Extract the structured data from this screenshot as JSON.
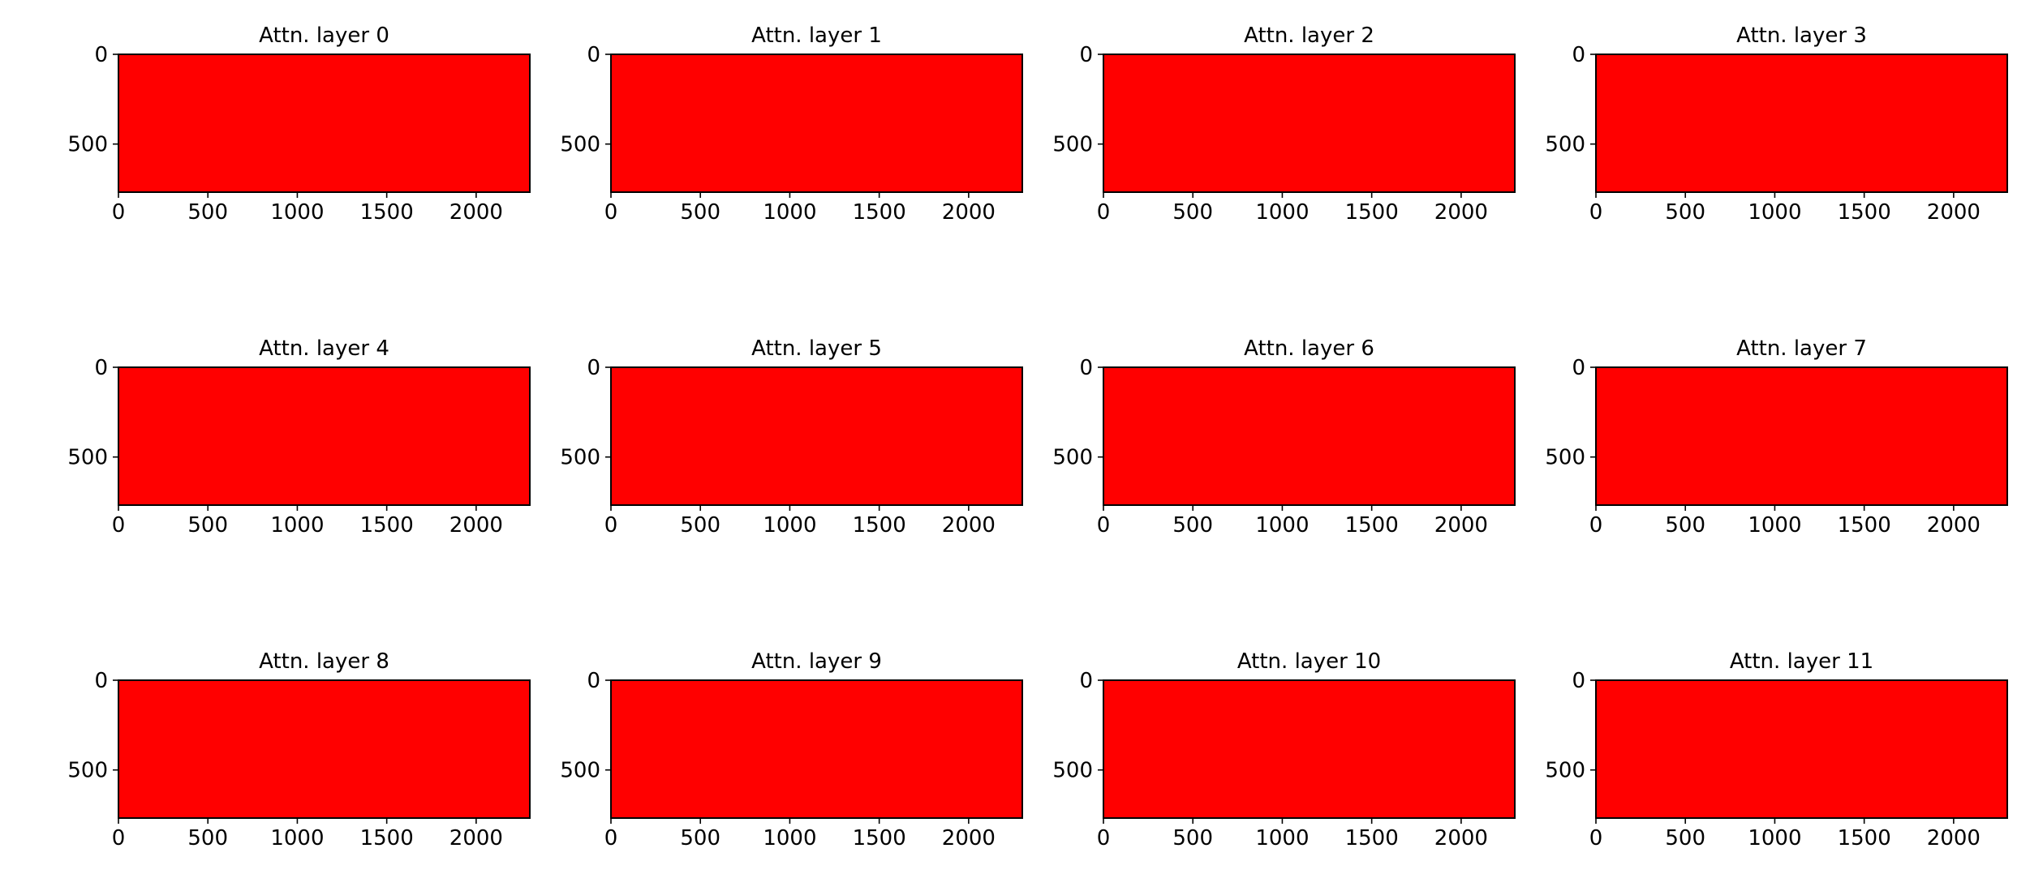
{
  "figure": {
    "background": "#ffffff",
    "fill_color": "#ff0000",
    "frame_color": "#000000",
    "rows": 3,
    "cols": 4
  },
  "chart_data": [
    {
      "type": "heatmap",
      "title": "Attn. layer 0",
      "xlim": [
        0,
        2300
      ],
      "ylim": [
        768,
        0
      ],
      "x_ticks": [
        "0",
        "500",
        "1000",
        "1500",
        "2000"
      ],
      "y_ticks": [
        "0",
        "500"
      ],
      "x_tick_values": [
        0,
        500,
        1000,
        1500,
        2000
      ],
      "y_tick_values": [
        0,
        500
      ],
      "uniform_value": "saturated red across entire map",
      "grid": false,
      "legend": "none"
    },
    {
      "type": "heatmap",
      "title": "Attn. layer 1",
      "xlim": [
        0,
        2300
      ],
      "ylim": [
        768,
        0
      ],
      "x_ticks": [
        "0",
        "500",
        "1000",
        "1500",
        "2000"
      ],
      "y_ticks": [
        "0",
        "500"
      ],
      "x_tick_values": [
        0,
        500,
        1000,
        1500,
        2000
      ],
      "y_tick_values": [
        0,
        500
      ],
      "uniform_value": "saturated red across entire map",
      "grid": false,
      "legend": "none"
    },
    {
      "type": "heatmap",
      "title": "Attn. layer 2",
      "xlim": [
        0,
        2300
      ],
      "ylim": [
        768,
        0
      ],
      "x_ticks": [
        "0",
        "500",
        "1000",
        "1500",
        "2000"
      ],
      "y_ticks": [
        "0",
        "500"
      ],
      "x_tick_values": [
        0,
        500,
        1000,
        1500,
        2000
      ],
      "y_tick_values": [
        0,
        500
      ],
      "uniform_value": "saturated red across entire map",
      "grid": false,
      "legend": "none"
    },
    {
      "type": "heatmap",
      "title": "Attn. layer 3",
      "xlim": [
        0,
        2300
      ],
      "ylim": [
        768,
        0
      ],
      "x_ticks": [
        "0",
        "500",
        "1000",
        "1500",
        "2000"
      ],
      "y_ticks": [
        "0",
        "500"
      ],
      "x_tick_values": [
        0,
        500,
        1000,
        1500,
        2000
      ],
      "y_tick_values": [
        0,
        500
      ],
      "uniform_value": "saturated red across entire map",
      "grid": false,
      "legend": "none"
    },
    {
      "type": "heatmap",
      "title": "Attn. layer 4",
      "xlim": [
        0,
        2300
      ],
      "ylim": [
        768,
        0
      ],
      "x_ticks": [
        "0",
        "500",
        "1000",
        "1500",
        "2000"
      ],
      "y_ticks": [
        "0",
        "500"
      ],
      "x_tick_values": [
        0,
        500,
        1000,
        1500,
        2000
      ],
      "y_tick_values": [
        0,
        500
      ],
      "uniform_value": "saturated red across entire map",
      "grid": false,
      "legend": "none"
    },
    {
      "type": "heatmap",
      "title": "Attn. layer 5",
      "xlim": [
        0,
        2300
      ],
      "ylim": [
        768,
        0
      ],
      "x_ticks": [
        "0",
        "500",
        "1000",
        "1500",
        "2000"
      ],
      "y_ticks": [
        "0",
        "500"
      ],
      "x_tick_values": [
        0,
        500,
        1000,
        1500,
        2000
      ],
      "y_tick_values": [
        0,
        500
      ],
      "uniform_value": "saturated red across entire map",
      "grid": false,
      "legend": "none"
    },
    {
      "type": "heatmap",
      "title": "Attn. layer 6",
      "xlim": [
        0,
        2300
      ],
      "ylim": [
        768,
        0
      ],
      "x_ticks": [
        "0",
        "500",
        "1000",
        "1500",
        "2000"
      ],
      "y_ticks": [
        "0",
        "500"
      ],
      "x_tick_values": [
        0,
        500,
        1000,
        1500,
        2000
      ],
      "y_tick_values": [
        0,
        500
      ],
      "uniform_value": "saturated red across entire map",
      "grid": false,
      "legend": "none"
    },
    {
      "type": "heatmap",
      "title": "Attn. layer 7",
      "xlim": [
        0,
        2300
      ],
      "ylim": [
        768,
        0
      ],
      "x_ticks": [
        "0",
        "500",
        "1000",
        "1500",
        "2000"
      ],
      "y_ticks": [
        "0",
        "500"
      ],
      "x_tick_values": [
        0,
        500,
        1000,
        1500,
        2000
      ],
      "y_tick_values": [
        0,
        500
      ],
      "uniform_value": "saturated red across entire map",
      "grid": false,
      "legend": "none"
    },
    {
      "type": "heatmap",
      "title": "Attn. layer 8",
      "xlim": [
        0,
        2300
      ],
      "ylim": [
        768,
        0
      ],
      "x_ticks": [
        "0",
        "500",
        "1000",
        "1500",
        "2000"
      ],
      "y_ticks": [
        "0",
        "500"
      ],
      "x_tick_values": [
        0,
        500,
        1000,
        1500,
        2000
      ],
      "y_tick_values": [
        0,
        500
      ],
      "uniform_value": "saturated red across entire map",
      "grid": false,
      "legend": "none"
    },
    {
      "type": "heatmap",
      "title": "Attn. layer 9",
      "xlim": [
        0,
        2300
      ],
      "ylim": [
        768,
        0
      ],
      "x_ticks": [
        "0",
        "500",
        "1000",
        "1500",
        "2000"
      ],
      "y_ticks": [
        "0",
        "500"
      ],
      "x_tick_values": [
        0,
        500,
        1000,
        1500,
        2000
      ],
      "y_tick_values": [
        0,
        500
      ],
      "uniform_value": "saturated red across entire map",
      "grid": false,
      "legend": "none"
    },
    {
      "type": "heatmap",
      "title": "Attn. layer 10",
      "xlim": [
        0,
        2300
      ],
      "ylim": [
        768,
        0
      ],
      "x_ticks": [
        "0",
        "500",
        "1000",
        "1500",
        "2000"
      ],
      "y_ticks": [
        "0",
        "500"
      ],
      "x_tick_values": [
        0,
        500,
        1000,
        1500,
        2000
      ],
      "y_tick_values": [
        0,
        500
      ],
      "uniform_value": "saturated red across entire map",
      "grid": false,
      "legend": "none"
    },
    {
      "type": "heatmap",
      "title": "Attn. layer 11",
      "xlim": [
        0,
        2300
      ],
      "ylim": [
        768,
        0
      ],
      "x_ticks": [
        "0",
        "500",
        "1000",
        "1500",
        "2000"
      ],
      "y_ticks": [
        "0",
        "500"
      ],
      "x_tick_values": [
        0,
        500,
        1000,
        1500,
        2000
      ],
      "y_tick_values": [
        0,
        500
      ],
      "uniform_value": "saturated red across entire map",
      "grid": false,
      "legend": "none"
    }
  ]
}
